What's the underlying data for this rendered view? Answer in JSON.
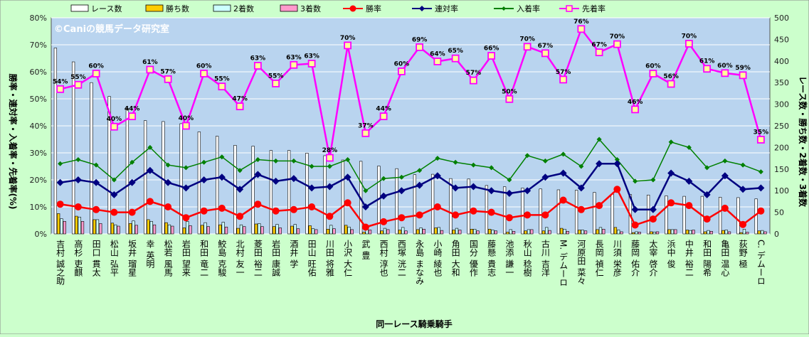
{
  "chart_data": {
    "type": "bar+line",
    "watermark": "©Caniの競馬データ研究室",
    "xlabel": "同一レース騎乗騎手",
    "ylabel_left": "勝率・連対率・入着率・先着率(%)",
    "ylabel_right": "レース数・勝ち数・2着数・3着数",
    "left_ticks": [
      "0%",
      "10%",
      "20%",
      "30%",
      "40%",
      "50%",
      "60%",
      "70%",
      "80%"
    ],
    "right_ticks": [
      "0",
      "50",
      "100",
      "150",
      "200",
      "250",
      "300",
      "350",
      "400",
      "450",
      "500"
    ],
    "ylim_left": [
      0,
      80
    ],
    "ylim_right": [
      0,
      500
    ],
    "categories": [
      "吉村 誠之助",
      "高杉 吏麒",
      "田口 貫太",
      "松山 弘平",
      "坂井 瑠星",
      "幸 英明",
      "松若 風馬",
      "岩田 望来",
      "和田 竜二",
      "鮫島 克駿",
      "北村 友一",
      "菱田 裕二",
      "岩田 康誠",
      "酒井 学",
      "田山 旺佑",
      "川田 将雅",
      "小沢 大仁",
      "武 豊",
      "西村 淳也",
      "西塚 洸二",
      "永島 まなみ",
      "小崎 綾也",
      "角田 大和",
      "国分 優作",
      "藤懸 貴志",
      "池添 謙一",
      "秋山 稔樹",
      "古川 吉洋",
      "M. デムーロ",
      "河原田 菜々",
      "長岡 禎仁",
      "川須 栄彦",
      "藤岡 佑介",
      "太宰 啓介",
      "浜中 俊",
      "中井 裕二",
      "和田 陽希",
      "亀田 温心",
      "荻野 極",
      "C. デムーロ"
    ],
    "series": [
      {
        "name": "レース数",
        "axis": "right",
        "color": "#ffffff",
        "values": [
          430,
          398,
          350,
          318,
          290,
          262,
          260,
          255,
          236,
          226,
          205,
          203,
          193,
          193,
          187,
          181,
          171,
          168,
          157,
          151,
          137,
          138,
          128,
          127,
          112,
          109,
          106,
          104,
          102,
          101,
          96,
          92,
          91,
          90,
          88,
          87,
          87,
          85,
          84,
          81
        ]
      },
      {
        "name": "勝ち数",
        "axis": "right",
        "color": "#ffcc00",
        "values": [
          47,
          41,
          33,
          25,
          24,
          33,
          26,
          14,
          20,
          21,
          13,
          23,
          17,
          18,
          19,
          11,
          20,
          4,
          7,
          9,
          10,
          14,
          9,
          11,
          11,
          4,
          7,
          7,
          13,
          9,
          10,
          15,
          3,
          5,
          10,
          9,
          5,
          8,
          3,
          7
        ]
      },
      {
        "name": "2着数",
        "axis": "right",
        "color": "#ccffff",
        "values": [
          35,
          39,
          33,
          21,
          30,
          29,
          21,
          29,
          26,
          27,
          21,
          24,
          22,
          22,
          12,
          20,
          16,
          11,
          13,
          15,
          14,
          15,
          13,
          11,
          9,
          10,
          10,
          15,
          11,
          9,
          15,
          9,
          5,
          4,
          10,
          8,
          8,
          9,
          11,
          8
        ]
      },
      {
        "name": "3着数",
        "axis": "right",
        "color": "#ff99cc",
        "values": [
          29,
          29,
          24,
          18,
          20,
          21,
          18,
          19,
          17,
          16,
          17,
          17,
          14,
          12,
          10,
          12,
          10,
          9,
          10,
          7,
          11,
          8,
          9,
          7,
          7,
          6,
          10,
          8,
          6,
          7,
          11,
          5,
          4,
          5,
          10,
          9,
          6,
          5,
          4,
          5
        ]
      },
      {
        "name": "勝率",
        "axis": "left",
        "color": "#ff0000",
        "values": [
          11,
          10,
          9,
          8,
          8,
          12,
          10,
          6,
          8.5,
          9.5,
          6.5,
          11,
          8.5,
          9,
          10,
          6.5,
          11.5,
          2.5,
          4.5,
          6,
          7,
          10,
          7,
          8.5,
          8,
          6,
          7,
          7,
          12.5,
          9,
          10.5,
          16.5,
          3.3,
          5.5,
          11.5,
          10.5,
          5.5,
          9.5,
          3.5,
          8.5
        ]
      },
      {
        "name": "連対率",
        "axis": "left",
        "color": "#000080",
        "values": [
          19,
          20,
          19,
          14.5,
          19,
          23.5,
          19,
          17,
          20,
          21,
          16.5,
          22,
          19.5,
          20.5,
          17,
          17.5,
          21,
          10,
          14,
          16,
          18,
          21.5,
          17,
          17.5,
          16,
          15,
          16,
          21,
          22.5,
          17,
          26,
          26,
          9,
          9,
          22.5,
          19.5,
          14.5,
          21.5,
          16.5,
          17
        ]
      },
      {
        "name": "入着率",
        "axis": "left",
        "color": "#008000",
        "values": [
          26,
          27.5,
          25.5,
          20,
          26.5,
          32,
          25.5,
          24.5,
          26.5,
          28.5,
          23.5,
          27.5,
          27,
          27,
          25,
          25,
          27.5,
          16,
          20.5,
          21,
          23.5,
          28,
          26.5,
          25.5,
          24.5,
          20,
          29,
          27,
          29.5,
          25,
          35,
          27.5,
          19.5,
          20,
          34,
          32,
          24.5,
          27,
          25.5,
          23
        ]
      },
      {
        "name": "先着率",
        "axis": "right",
        "color": "#ff00ff",
        "values": [
          335,
          345,
          371,
          248,
          272,
          380,
          358,
          250,
          371,
          341,
          295,
          389,
          348,
          391,
          394,
          176,
          436,
          233,
          272,
          376,
          432,
          399,
          406,
          355,
          412,
          312,
          433,
          418,
          357,
          474,
          420,
          439,
          288,
          371,
          347,
          440,
          382,
          372,
          367,
          218
        ]
      }
    ],
    "point_labels": [
      "54%",
      "55%",
      "60%",
      "40%",
      "44%",
      "61%",
      "57%",
      "40%",
      "60%",
      "55%",
      "47%",
      "63%",
      "55%",
      "63%",
      "63%",
      "28%",
      "70%",
      "37%",
      "44%",
      "60%",
      "69%",
      "64%",
      "65%",
      "57%",
      "66%",
      "50%",
      "70%",
      "67%",
      "57%",
      "76%",
      "67%",
      "70%",
      "46%",
      "60%",
      "56%",
      "70%",
      "61%",
      "60%",
      "59%",
      "35%"
    ],
    "grid": true,
    "legend": "top"
  }
}
